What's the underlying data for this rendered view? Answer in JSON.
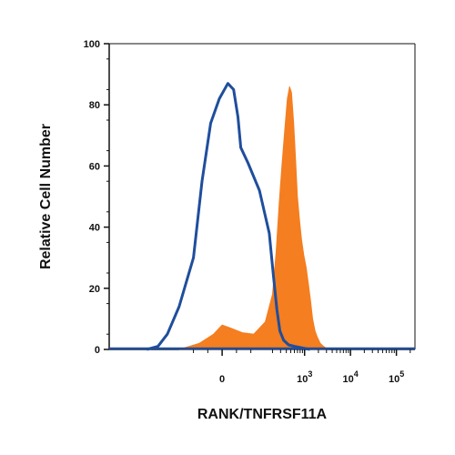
{
  "chart_data": {
    "type": "area",
    "title": "",
    "xlabel": "RANK/TNFRSF11A",
    "ylabel": "Relative Cell Number",
    "x_scale": "biexponential",
    "x_ticks": [
      {
        "value": 0,
        "label": "0",
        "exp": ""
      },
      {
        "value": 1000,
        "label": "10",
        "exp": "3"
      },
      {
        "value": 10000,
        "label": "10",
        "exp": "4"
      },
      {
        "value": 100000,
        "label": "10",
        "exp": "5"
      }
    ],
    "y_ticks": [
      0,
      20,
      40,
      60,
      80,
      100
    ],
    "ylim": [
      0,
      100
    ],
    "grid": false,
    "legend": "none",
    "series": [
      {
        "style": "filled",
        "color": "#F47E20",
        "points": [
          [
            -150,
            0
          ],
          [
            -80,
            2
          ],
          [
            -30,
            5
          ],
          [
            0,
            8
          ],
          [
            30,
            7
          ],
          [
            70,
            5.5
          ],
          [
            110,
            5
          ],
          [
            150,
            9
          ],
          [
            200,
            18
          ],
          [
            240,
            32
          ],
          [
            280,
            48
          ],
          [
            320,
            60
          ],
          [
            370,
            72
          ],
          [
            420,
            82
          ],
          [
            470,
            86
          ],
          [
            520,
            84
          ],
          [
            580,
            74
          ],
          [
            640,
            62
          ],
          [
            700,
            50
          ],
          [
            780,
            42
          ],
          [
            860,
            36
          ],
          [
            960,
            31
          ],
          [
            1080,
            27
          ],
          [
            1200,
            22
          ],
          [
            1350,
            16
          ],
          [
            1500,
            10
          ],
          [
            1700,
            6
          ],
          [
            1900,
            4
          ],
          [
            2200,
            2
          ],
          [
            2600,
            1
          ],
          [
            3200,
            0
          ]
        ]
      },
      {
        "style": "outline",
        "color": "#1F4E9C",
        "points": [
          [
            -700,
            0
          ],
          [
            -400,
            1
          ],
          [
            -250,
            5
          ],
          [
            -150,
            14
          ],
          [
            -100,
            30
          ],
          [
            -70,
            55
          ],
          [
            -40,
            74
          ],
          [
            -10,
            82
          ],
          [
            20,
            87
          ],
          [
            40,
            85
          ],
          [
            55,
            76
          ],
          [
            65,
            66
          ],
          [
            90,
            61
          ],
          [
            130,
            52
          ],
          [
            170,
            38
          ],
          [
            210,
            24
          ],
          [
            250,
            13
          ],
          [
            290,
            6
          ],
          [
            350,
            3
          ],
          [
            450,
            1.5
          ],
          [
            600,
            1
          ],
          [
            900,
            0.5
          ],
          [
            1300,
            0
          ]
        ]
      }
    ]
  }
}
